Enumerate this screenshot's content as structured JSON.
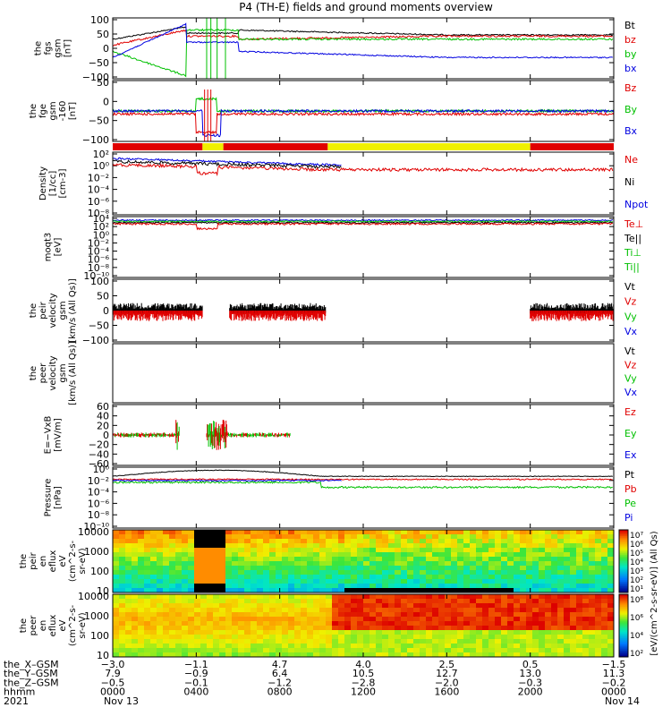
{
  "title": "P4 (TH-E) fields and ground moments overview",
  "colors": {
    "black": "#000000",
    "red": "#e00000",
    "green": "#00c000",
    "blue": "#0000e0",
    "yellow": "#f0f000"
  },
  "chart_data": {
    "type": "line",
    "panels": [
      {
        "id": "fgs",
        "ylabel": [
          "the",
          "fgs",
          "gsm",
          "[nT]"
        ],
        "yticks": [
          "100",
          "50",
          "0",
          "−50",
          "−100"
        ],
        "yrange": [
          -100,
          100
        ],
        "scale": "linear",
        "legend": [
          {
            "text": "Bt",
            "color": "black"
          },
          {
            "text": "bz",
            "color": "red"
          },
          {
            "text": "by",
            "color": "green"
          },
          {
            "text": "bx",
            "color": "blue"
          }
        ]
      },
      {
        "id": "fge",
        "ylabel": [
          "the",
          "fge",
          "gsm",
          "-160",
          "[nT]"
        ],
        "yticks": [
          "50",
          "0",
          "−50",
          "−100"
        ],
        "yrange": [
          -120,
          60
        ],
        "scale": "linear",
        "legend": [
          {
            "text": "Bz",
            "color": "red"
          },
          {
            "text": "By",
            "color": "green"
          },
          {
            "text": "Bx",
            "color": "blue"
          }
        ]
      },
      {
        "id": "density",
        "ylabel": [
          "Density",
          "[1/cc]",
          "[cm-3]"
        ],
        "yticks": [
          "10²",
          "10⁰",
          "10⁻²",
          "10⁻⁴",
          "10⁻⁶",
          "10⁻⁸"
        ],
        "yrange": [
          -9,
          3
        ],
        "scale": "log",
        "legend": [
          {
            "text": "Ne",
            "color": "red"
          },
          {
            "text": "Ni",
            "color": "black"
          },
          {
            "text": "Npot",
            "color": "blue"
          }
        ]
      },
      {
        "id": "temp",
        "ylabel": [
          "moqt3",
          "[eV]"
        ],
        "yticks": [
          "10⁴",
          "10²",
          "10⁰",
          "10⁻²",
          "10⁻⁴",
          "10⁻⁶",
          "10⁻⁸",
          "10⁻¹⁰"
        ],
        "yrange": [
          -10,
          4
        ],
        "scale": "log",
        "legend": [
          {
            "text": "Te⊥",
            "color": "red"
          },
          {
            "text": "Te||",
            "color": "black"
          },
          {
            "text": "Ti⊥",
            "color": "green"
          },
          {
            "text": "Ti||",
            "color": "green"
          }
        ]
      },
      {
        "id": "vi",
        "ylabel": [
          "the",
          "peir",
          "velocity",
          "gsm",
          "[km/s (All Qs)]"
        ],
        "yticks": [
          "100",
          "50",
          "0",
          "−50",
          "−100"
        ],
        "yrange": [
          -100,
          100
        ],
        "scale": "linear",
        "legend": [
          {
            "text": "Vt",
            "color": "black"
          },
          {
            "text": "Vz",
            "color": "red"
          },
          {
            "text": "Vy",
            "color": "green"
          },
          {
            "text": "Vx",
            "color": "blue"
          }
        ]
      },
      {
        "id": "ve",
        "ylabel": [
          "the",
          "peer",
          "velocity",
          "gsm",
          "[km/s (All Qs)]"
        ],
        "yticks": [],
        "yrange": [
          -100,
          100
        ],
        "scale": "linear",
        "legend": [
          {
            "text": "Vt",
            "color": "black"
          },
          {
            "text": "Vz",
            "color": "red"
          },
          {
            "text": "Vy",
            "color": "green"
          },
          {
            "text": "Vx",
            "color": "blue"
          }
        ]
      },
      {
        "id": "efield",
        "ylabel": [
          "E=−VxB",
          "[mV/m]"
        ],
        "yticks": [
          "60",
          "40",
          "20",
          "0",
          "−20",
          "−40",
          "−60"
        ],
        "yrange": [
          -60,
          60
        ],
        "scale": "linear",
        "legend": [
          {
            "text": "Ez",
            "color": "red"
          },
          {
            "text": "Ey",
            "color": "green"
          },
          {
            "text": "Ex",
            "color": "blue"
          }
        ]
      },
      {
        "id": "pressure",
        "ylabel": [
          "Pressure",
          "[nPa]"
        ],
        "yticks": [
          "10⁰",
          "10⁻²",
          "10⁻⁴",
          "10⁻⁶",
          "10⁻⁸",
          "10⁻¹⁰"
        ],
        "yrange": [
          -11,
          1
        ],
        "scale": "log",
        "legend": [
          {
            "text": "Pt",
            "color": "black"
          },
          {
            "text": "Pb",
            "color": "red"
          },
          {
            "text": "Pe",
            "color": "green"
          },
          {
            "text": "Pi",
            "color": "blue"
          }
        ]
      },
      {
        "id": "peir_spec",
        "ylabel": [
          "the",
          "peir",
          "en",
          "eflux",
          "eV",
          "(cm^2-s-",
          "sr-eV)"
        ],
        "yticks": [
          "10000",
          "1000",
          "100",
          "10"
        ],
        "scale": "log",
        "type": "heatmap"
      },
      {
        "id": "peer_spec",
        "ylabel": [
          "the",
          "peer",
          "en",
          "eflux",
          "eV",
          "(cm^2-s-",
          "sr-eV)"
        ],
        "yticks": [
          "10000",
          "1000",
          "100",
          "10"
        ],
        "scale": "log",
        "type": "heatmap"
      }
    ],
    "colorbars": [
      {
        "ticks": [
          "10⁷",
          "10⁶",
          "10⁵",
          "10⁴",
          "10³",
          "10²",
          "10¹"
        ]
      },
      {
        "ticks": [
          "10⁸",
          "10⁶",
          "10⁴",
          "10²"
        ]
      }
    ],
    "colorbar_label": "[eV/(cm^2-s-sr-eV)] (All Qs)",
    "x_axis": {
      "row_labels": [
        "the_X–GSM",
        "the_Y–GSM",
        "the_Z–GSM",
        "hhmm",
        "2021"
      ],
      "columns": [
        [
          "−3.0",
          "7.9",
          "−0.5",
          "0000",
          "Nov 13"
        ],
        [
          "−1.1",
          "−0.9",
          "−0.1",
          "0400",
          ""
        ],
        [
          "4.7",
          "6.4",
          "−1.2",
          "0800",
          ""
        ],
        [
          "4.0",
          "10.5",
          "−2.8",
          "1200",
          ""
        ],
        [
          "2.5",
          "12.7",
          "−2.0",
          "1600",
          ""
        ],
        [
          "0.5",
          "13.0",
          "−0.3",
          "2000",
          ""
        ],
        [
          "−1.5",
          "11.3",
          "−0.2",
          "0000",
          "Nov 14"
        ]
      ]
    },
    "mode_bar": [
      {
        "from": 0,
        "to": 4.3,
        "color": "red"
      },
      {
        "from": 4.3,
        "to": 5.3,
        "color": "yellow"
      },
      {
        "from": 5.3,
        "to": 10.3,
        "color": "red"
      },
      {
        "from": 10.3,
        "to": 20.0,
        "color": "yellow"
      },
      {
        "from": 20.0,
        "to": 24,
        "color": "red"
      }
    ]
  }
}
